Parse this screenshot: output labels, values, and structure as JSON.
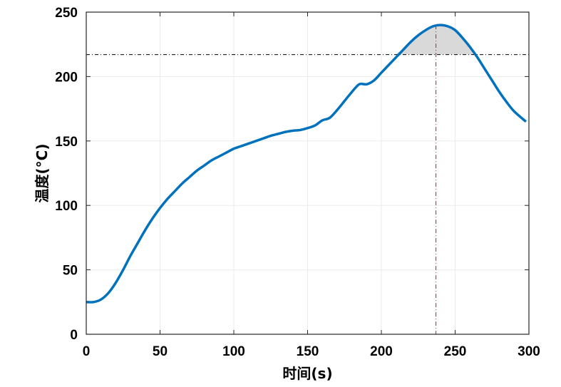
{
  "chart_data": {
    "type": "line",
    "xlabel": "时间(s)",
    "ylabel": "温度(°C)",
    "xlim": [
      0,
      300
    ],
    "ylim": [
      0,
      250
    ],
    "xticks": [
      0,
      50,
      100,
      150,
      200,
      250,
      300
    ],
    "yticks": [
      0,
      50,
      100,
      150,
      200,
      250
    ],
    "grid": true,
    "series_color": "#0072bd",
    "threshold": {
      "y": 217,
      "color": "#000000",
      "style": "dash-dot"
    },
    "peak_marker": {
      "x": 237,
      "y": 240,
      "color": "#ff0000",
      "style": "dash-dot"
    },
    "shaded_region": {
      "above_y": 217,
      "x_range": [
        209,
        265
      ],
      "color": "#d9d9d9"
    },
    "series": [
      {
        "x": [
          0,
          5,
          10,
          15,
          20,
          25,
          30,
          35,
          40,
          45,
          50,
          55,
          60,
          65,
          70,
          75,
          80,
          85,
          90,
          95,
          100,
          105,
          110,
          115,
          120,
          125,
          130,
          135,
          140,
          145,
          150,
          155,
          160,
          165,
          170,
          175,
          180,
          185,
          190,
          195,
          200,
          205,
          210,
          215,
          220,
          225,
          230,
          235,
          240,
          245,
          250,
          255,
          260,
          265,
          270,
          275,
          280,
          285,
          290,
          298
        ],
        "y": [
          25,
          25,
          27,
          32,
          40,
          50,
          61,
          71,
          81,
          90,
          98,
          105,
          111,
          117,
          122,
          127,
          131,
          135,
          138,
          141,
          144,
          146,
          148,
          150,
          152,
          154,
          155.5,
          157,
          158,
          158.5,
          160,
          162,
          166,
          168,
          174,
          181,
          188,
          194,
          194,
          197,
          203,
          209,
          215,
          221,
          227,
          232,
          236,
          239,
          240,
          239,
          236,
          230,
          223,
          215,
          206,
          197,
          188,
          180,
          173,
          165
        ]
      }
    ]
  }
}
